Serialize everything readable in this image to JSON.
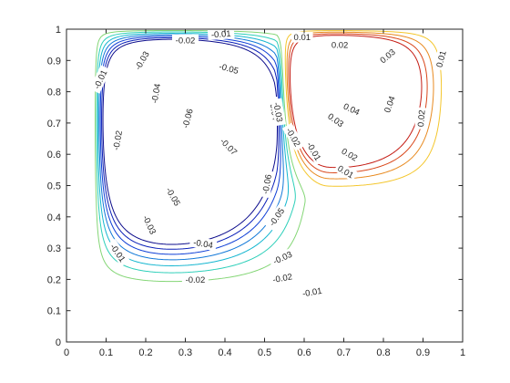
{
  "chart_data": {
    "type": "contour",
    "title": "",
    "xlabel": "",
    "ylabel": "",
    "xlim": [
      0,
      1
    ],
    "ylim": [
      0,
      1
    ],
    "xticks": [
      "0",
      "0.1",
      "0.2",
      "0.3",
      "0.4",
      "0.5",
      "0.6",
      "0.7",
      "0.8",
      "0.9",
      "1"
    ],
    "yticks": [
      "0",
      "0.1",
      "0.2",
      "0.3",
      "0.4",
      "0.5",
      "0.6",
      "0.7",
      "0.8",
      "0.9",
      "1"
    ],
    "grid": false,
    "colormap": "parula",
    "levels": [
      -0.07,
      -0.06,
      -0.05,
      -0.04,
      -0.03,
      -0.02,
      -0.01,
      0.01,
      0.02,
      0.03,
      0.04
    ],
    "level_colors": {
      "-0.07": "#0c0c8c",
      "-0.06": "#0a1fb8",
      "-0.05": "#0f3fd6",
      "-0.04": "#1178d8",
      "-0.03": "#14b6d0",
      "-0.02": "#2ccfb9",
      "-0.01": "#84d676",
      "0.01": "#f4c62c",
      "0.02": "#e88a20",
      "0.03": "#d9471b",
      "0.04": "#c41b13"
    },
    "extrema": [
      {
        "value": -0.07,
        "x": 0.4,
        "y": 0.62
      },
      {
        "value": 0.04,
        "x": 0.74,
        "y": 0.82
      }
    ],
    "contour_labels": [
      {
        "text": "-0.01",
        "x": 0.39,
        "y": 0.985,
        "angle": -4
      },
      {
        "text": "-0.02",
        "x": 0.3,
        "y": 0.965,
        "angle": 0
      },
      {
        "text": "-0.03",
        "x": 0.19,
        "y": 0.9,
        "angle": -60
      },
      {
        "text": "-0.04",
        "x": 0.225,
        "y": 0.795,
        "angle": -80
      },
      {
        "text": "-0.05",
        "x": 0.41,
        "y": 0.875,
        "angle": 15
      },
      {
        "text": "-0.06",
        "x": 0.305,
        "y": 0.715,
        "angle": -75
      },
      {
        "text": "-0.07",
        "x": 0.41,
        "y": 0.625,
        "angle": 45
      },
      {
        "text": "-0.06",
        "x": 0.505,
        "y": 0.505,
        "angle": -80
      },
      {
        "text": "-0.05",
        "x": 0.53,
        "y": 0.4,
        "angle": -55
      },
      {
        "text": "-0.05",
        "x": 0.27,
        "y": 0.465,
        "angle": 60
      },
      {
        "text": "-0.04",
        "x": 0.345,
        "y": 0.315,
        "angle": 10
      },
      {
        "text": "-0.04",
        "x": 0.525,
        "y": 0.74,
        "angle": 80
      },
      {
        "text": "-0.03",
        "x": 0.21,
        "y": 0.375,
        "angle": 65
      },
      {
        "text": "-0.03",
        "x": 0.545,
        "y": 0.27,
        "angle": -25
      },
      {
        "text": "-0.03",
        "x": 0.535,
        "y": 0.735,
        "angle": 80
      },
      {
        "text": "-0.02",
        "x": 0.128,
        "y": 0.645,
        "angle": -80
      },
      {
        "text": "-0.02",
        "x": 0.325,
        "y": 0.2,
        "angle": 0
      },
      {
        "text": "-0.02",
        "x": 0.545,
        "y": 0.205,
        "angle": -10
      },
      {
        "text": "-0.02",
        "x": 0.573,
        "y": 0.655,
        "angle": 60
      },
      {
        "text": "-0.01",
        "x": 0.085,
        "y": 0.84,
        "angle": -65
      },
      {
        "text": "-0.01",
        "x": 0.13,
        "y": 0.285,
        "angle": 55
      },
      {
        "text": "-0.01",
        "x": 0.62,
        "y": 0.16,
        "angle": -10
      },
      {
        "text": "-0.01",
        "x": 0.625,
        "y": 0.61,
        "angle": 60
      },
      {
        "text": "0.01",
        "x": 0.595,
        "y": 0.975,
        "angle": 0
      },
      {
        "text": "0.02",
        "x": 0.69,
        "y": 0.95,
        "angle": 0
      },
      {
        "text": "0.03",
        "x": 0.81,
        "y": 0.915,
        "angle": -40
      },
      {
        "text": "0.01",
        "x": 0.945,
        "y": 0.905,
        "angle": -75
      },
      {
        "text": "0.02",
        "x": 0.895,
        "y": 0.715,
        "angle": -85
      },
      {
        "text": "0.04",
        "x": 0.815,
        "y": 0.76,
        "angle": -70
      },
      {
        "text": "0.04",
        "x": 0.72,
        "y": 0.745,
        "angle": 25
      },
      {
        "text": "0.03",
        "x": 0.68,
        "y": 0.71,
        "angle": 35
      },
      {
        "text": "0.02",
        "x": 0.715,
        "y": 0.6,
        "angle": 30
      },
      {
        "text": "0.01",
        "x": 0.705,
        "y": 0.545,
        "angle": 30
      }
    ]
  }
}
